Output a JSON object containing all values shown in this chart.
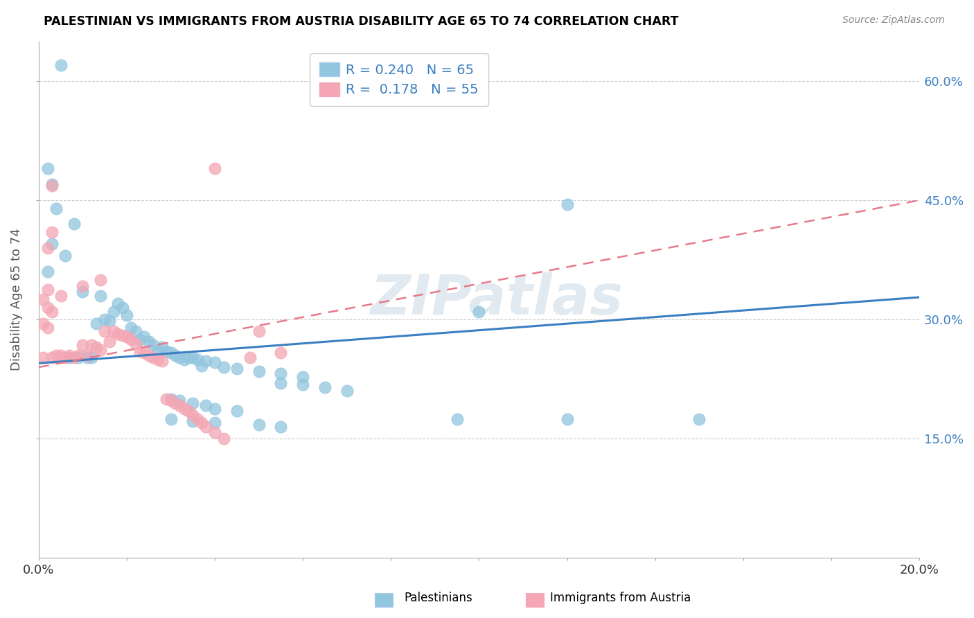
{
  "title": "PALESTINIAN VS IMMIGRANTS FROM AUSTRIA DISABILITY AGE 65 TO 74 CORRELATION CHART",
  "source": "Source: ZipAtlas.com",
  "ylabel": "Disability Age 65 to 74",
  "legend_blue_r": "0.240",
  "legend_blue_n": "65",
  "legend_pink_r": "0.178",
  "legend_pink_n": "55",
  "legend_label_blue": "Palestinians",
  "legend_label_pink": "Immigrants from Austria",
  "watermark": "ZIPatlas",
  "blue_color": "#92c5de",
  "pink_color": "#f4a6b4",
  "blue_line_color": "#3a7fc1",
  "pink_line_color": "#e8798a",
  "blue_scatter": [
    [
      0.005,
      0.62
    ],
    [
      0.002,
      0.49
    ],
    [
      0.003,
      0.47
    ],
    [
      0.004,
      0.44
    ],
    [
      0.008,
      0.42
    ],
    [
      0.003,
      0.395
    ],
    [
      0.006,
      0.38
    ],
    [
      0.002,
      0.36
    ],
    [
      0.01,
      0.335
    ],
    [
      0.014,
      0.33
    ],
    [
      0.018,
      0.32
    ],
    [
      0.019,
      0.315
    ],
    [
      0.017,
      0.31
    ],
    [
      0.02,
      0.305
    ],
    [
      0.015,
      0.3
    ],
    [
      0.016,
      0.298
    ],
    [
      0.013,
      0.295
    ],
    [
      0.021,
      0.29
    ],
    [
      0.022,
      0.285
    ],
    [
      0.024,
      0.278
    ],
    [
      0.023,
      0.275
    ],
    [
      0.025,
      0.272
    ],
    [
      0.026,
      0.268
    ],
    [
      0.028,
      0.265
    ],
    [
      0.027,
      0.262
    ],
    [
      0.029,
      0.26
    ],
    [
      0.03,
      0.258
    ],
    [
      0.031,
      0.255
    ],
    [
      0.032,
      0.252
    ],
    [
      0.033,
      0.25
    ],
    [
      0.034,
      0.252
    ],
    [
      0.035,
      0.252
    ],
    [
      0.012,
      0.252
    ],
    [
      0.011,
      0.252
    ],
    [
      0.007,
      0.252
    ],
    [
      0.009,
      0.252
    ],
    [
      0.036,
      0.25
    ],
    [
      0.038,
      0.248
    ],
    [
      0.04,
      0.246
    ],
    [
      0.037,
      0.242
    ],
    [
      0.042,
      0.24
    ],
    [
      0.045,
      0.238
    ],
    [
      0.05,
      0.235
    ],
    [
      0.055,
      0.232
    ],
    [
      0.06,
      0.228
    ],
    [
      0.055,
      0.22
    ],
    [
      0.06,
      0.218
    ],
    [
      0.065,
      0.215
    ],
    [
      0.07,
      0.21
    ],
    [
      0.03,
      0.2
    ],
    [
      0.032,
      0.198
    ],
    [
      0.035,
      0.195
    ],
    [
      0.038,
      0.192
    ],
    [
      0.04,
      0.188
    ],
    [
      0.045,
      0.185
    ],
    [
      0.03,
      0.175
    ],
    [
      0.035,
      0.172
    ],
    [
      0.04,
      0.17
    ],
    [
      0.05,
      0.168
    ],
    [
      0.055,
      0.165
    ],
    [
      0.12,
      0.445
    ],
    [
      0.1,
      0.31
    ],
    [
      0.095,
      0.175
    ],
    [
      0.12,
      0.175
    ],
    [
      0.15,
      0.175
    ]
  ],
  "pink_scatter": [
    [
      0.04,
      0.49
    ],
    [
      0.003,
      0.468
    ],
    [
      0.003,
      0.41
    ],
    [
      0.002,
      0.39
    ],
    [
      0.014,
      0.35
    ],
    [
      0.01,
      0.342
    ],
    [
      0.005,
      0.33
    ],
    [
      0.001,
      0.325
    ],
    [
      0.002,
      0.338
    ],
    [
      0.002,
      0.315
    ],
    [
      0.003,
      0.31
    ],
    [
      0.001,
      0.295
    ],
    [
      0.002,
      0.29
    ],
    [
      0.015,
      0.285
    ],
    [
      0.017,
      0.285
    ],
    [
      0.018,
      0.282
    ],
    [
      0.019,
      0.28
    ],
    [
      0.02,
      0.278
    ],
    [
      0.021,
      0.275
    ],
    [
      0.016,
      0.272
    ],
    [
      0.022,
      0.27
    ],
    [
      0.01,
      0.268
    ],
    [
      0.012,
      0.268
    ],
    [
      0.013,
      0.265
    ],
    [
      0.014,
      0.262
    ],
    [
      0.023,
      0.26
    ],
    [
      0.024,
      0.258
    ],
    [
      0.011,
      0.255
    ],
    [
      0.025,
      0.255
    ],
    [
      0.009,
      0.255
    ],
    [
      0.007,
      0.255
    ],
    [
      0.005,
      0.255
    ],
    [
      0.004,
      0.255
    ],
    [
      0.008,
      0.252
    ],
    [
      0.006,
      0.252
    ],
    [
      0.003,
      0.252
    ],
    [
      0.001,
      0.252
    ],
    [
      0.026,
      0.252
    ],
    [
      0.027,
      0.25
    ],
    [
      0.028,
      0.248
    ],
    [
      0.05,
      0.285
    ],
    [
      0.048,
      0.252
    ],
    [
      0.055,
      0.258
    ],
    [
      0.029,
      0.2
    ],
    [
      0.03,
      0.198
    ],
    [
      0.031,
      0.195
    ],
    [
      0.032,
      0.192
    ],
    [
      0.033,
      0.188
    ],
    [
      0.034,
      0.185
    ],
    [
      0.035,
      0.18
    ],
    [
      0.036,
      0.175
    ],
    [
      0.037,
      0.17
    ],
    [
      0.038,
      0.165
    ],
    [
      0.04,
      0.158
    ],
    [
      0.042,
      0.15
    ]
  ],
  "xlim": [
    0.0,
    0.2
  ],
  "ylim": [
    0.0,
    0.65
  ],
  "blue_trend_x": [
    0.0,
    0.2
  ],
  "blue_trend_y": [
    0.245,
    0.328
  ],
  "pink_trend_x": [
    0.0,
    0.2
  ],
  "pink_trend_y": [
    0.24,
    0.45
  ],
  "x_ticks": [
    0.0,
    0.02,
    0.04,
    0.06,
    0.08,
    0.1,
    0.12,
    0.14,
    0.16,
    0.18,
    0.2
  ],
  "y_ticks": [
    0.15,
    0.3,
    0.45,
    0.6
  ],
  "y_tick_labels": [
    "15.0%",
    "30.0%",
    "45.0%",
    "60.0%"
  ]
}
